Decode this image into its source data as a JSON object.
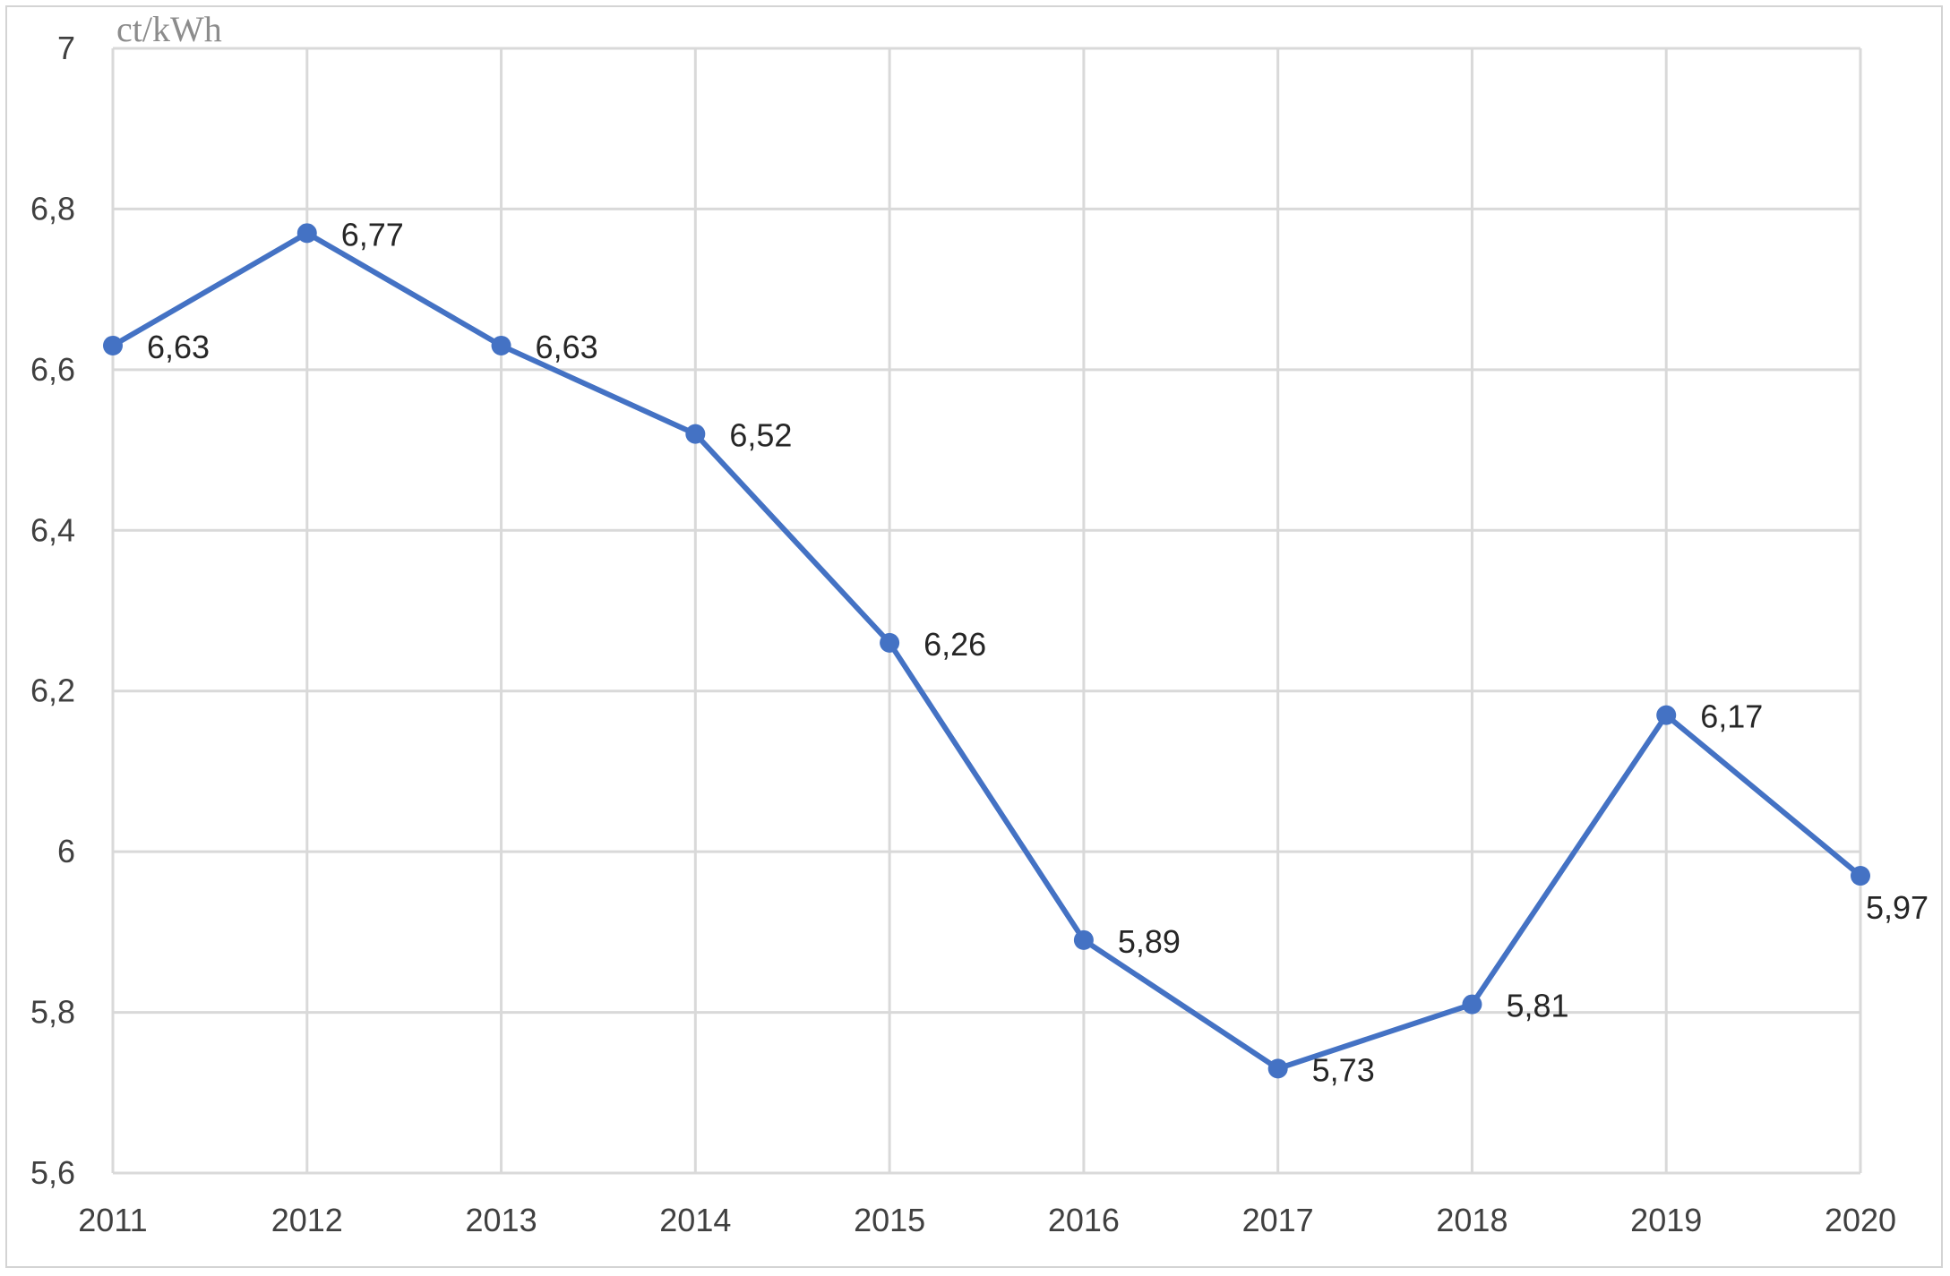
{
  "chart_data": {
    "type": "line",
    "title": "",
    "xlabel": "",
    "ylabel": "ct/kWh",
    "categories": [
      "2011",
      "2012",
      "2013",
      "2014",
      "2015",
      "2016",
      "2017",
      "2018",
      "2019",
      "2020"
    ],
    "series": [
      {
        "values": [
          6.63,
          6.77,
          6.63,
          6.52,
          6.26,
          5.89,
          5.73,
          5.81,
          6.17,
          5.97
        ],
        "data_labels": [
          "6,63",
          "6,77",
          "6,63",
          "6,52",
          "6,26",
          "5,89",
          "5,73",
          "5,81",
          "6,17",
          "5,97"
        ],
        "color": "#4472C4"
      }
    ],
    "ylim": [
      5.6,
      7.0
    ],
    "yticks": [
      5.6,
      5.8,
      6.0,
      6.2,
      6.4,
      6.6,
      6.8,
      7.0
    ],
    "ytick_labels": [
      "5,6",
      "5,8",
      "6",
      "6,2",
      "6,4",
      "6,6",
      "6,8",
      "7"
    ],
    "grid": true,
    "legend": "none"
  }
}
